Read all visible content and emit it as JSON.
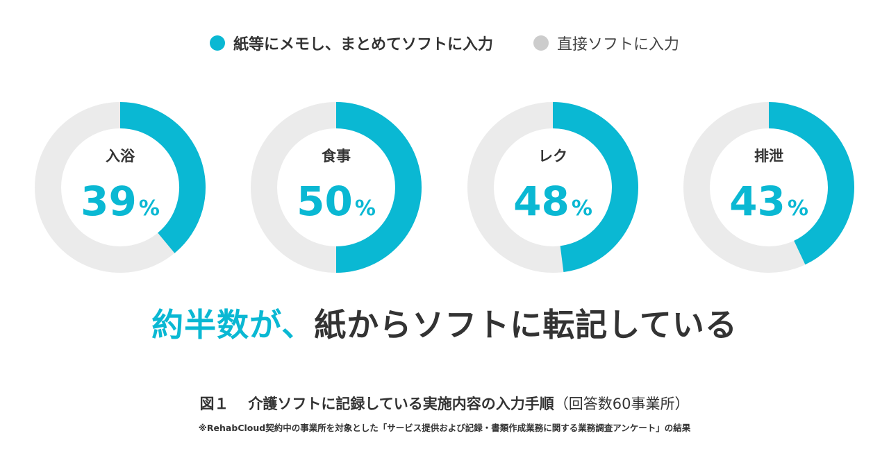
{
  "legend": [
    {
      "label": "紙等にメモし、まとめてソフトに入力",
      "color": "#0ab8d3"
    },
    {
      "label": "直接ソフトに入力",
      "color": "#cccccc"
    }
  ],
  "chart_data": {
    "type": "pie",
    "categories": [
      "入浴",
      "食事",
      "レク",
      "排泄"
    ],
    "series": [
      {
        "name": "紙等にメモし、まとめてソフトに入力",
        "values": [
          39,
          50,
          48,
          43
        ]
      },
      {
        "name": "直接ソフトに入力",
        "values": [
          61,
          50,
          52,
          57
        ]
      }
    ],
    "unit": "%",
    "colors": {
      "primary": "#0ab8d3",
      "remainder": "#ebebeb"
    }
  },
  "headline": {
    "accent": "約半数が、",
    "rest": "紙からソフトに転記している"
  },
  "caption": {
    "figure": "図１",
    "title": "介護ソフトに記録している実施内容の入力手順",
    "note": "（回答数60事業所）"
  },
  "footnote": "※RehabCloud契約中の事業所を対象とした「サービス提供および記録・書類作成業務に関する業務調査アンケート」の結果"
}
